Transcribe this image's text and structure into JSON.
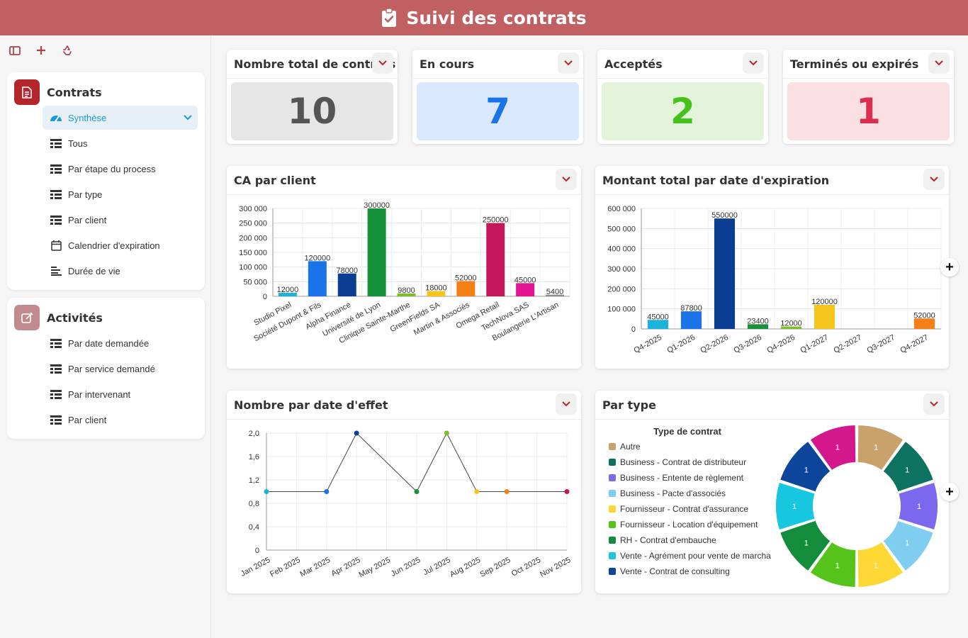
{
  "header": {
    "title": "Suivi des contrats"
  },
  "sidebar": {
    "contracts": {
      "title": "Contrats",
      "items": [
        {
          "label": "Synthèse",
          "icon": "gauge-icon",
          "active": true
        },
        {
          "label": "Tous",
          "icon": "table-icon"
        },
        {
          "label": "Par étape du process",
          "icon": "table-icon"
        },
        {
          "label": "Par type",
          "icon": "table-icon"
        },
        {
          "label": "Par client",
          "icon": "table-icon"
        },
        {
          "label": "Calendrier d'expiration",
          "icon": "calendar-icon"
        },
        {
          "label": "Durée de vie",
          "icon": "gantt-icon"
        }
      ]
    },
    "activities": {
      "title": "Activités",
      "items": [
        {
          "label": "Par date demandée",
          "icon": "table-icon"
        },
        {
          "label": "Par service demandé",
          "icon": "table-icon"
        },
        {
          "label": "Par intervenant",
          "icon": "table-icon"
        },
        {
          "label": "Par client",
          "icon": "table-icon"
        }
      ]
    }
  },
  "kpis": [
    {
      "title": "Nombre total de contrats",
      "value": "10",
      "bg": "#e6e6e6",
      "color": "#555555"
    },
    {
      "title": "En cours",
      "value": "7",
      "bg": "#d9e8fb",
      "color": "#1a73e8"
    },
    {
      "title": "Acceptés",
      "value": "2",
      "bg": "#e2f3d9",
      "color": "#45c21a"
    },
    {
      "title": "Terminés ou expirés",
      "value": "1",
      "bg": "#fadfe3",
      "color": "#dc2f4e"
    }
  ],
  "charts": {
    "ca_client": {
      "title": "CA par client"
    },
    "montant_expiration": {
      "title": "Montant total par date d'expiration"
    },
    "nombre_effet": {
      "title": "Nombre par date d'effet"
    },
    "par_type": {
      "title": "Par type",
      "legend_title": "Type de contrat"
    }
  },
  "chart_data": [
    {
      "type": "bar",
      "title": "CA par client",
      "categories": [
        "Studio Pixel",
        "Société Dupont & Fils",
        "Alpha Finance",
        "Université de Lyon",
        "Clinique Sainte-Marthe",
        "GreenFields SA",
        "Martin & Associés",
        "Omega Retail",
        "TechNova SAS",
        "Boulangerie L'Artisan"
      ],
      "values": [
        12000,
        120000,
        78000,
        300000,
        9800,
        18000,
        52000,
        250000,
        45000,
        5400
      ],
      "colors": [
        "#1ab3d9",
        "#1a73e8",
        "#0b3d91",
        "#16923a",
        "#7cbf26",
        "#f5c51c",
        "#f57f17",
        "#c2185b",
        "#e0158f",
        "#8e8e8e"
      ],
      "yticks": [
        "300 000",
        "250 000",
        "200 000",
        "150 000",
        "100 000",
        "50 000",
        "0"
      ],
      "ylim": [
        0,
        300000
      ]
    },
    {
      "type": "bar",
      "title": "Montant total par date d'expiration",
      "categories": [
        "Q4-2025",
        "Q1-2026",
        "Q2-2026",
        "Q3-2026",
        "Q4-2026",
        "Q1-2027",
        "Q2-2027",
        "Q3-2027",
        "Q4-2027"
      ],
      "values": [
        45000,
        87800,
        550000,
        23400,
        12000,
        120000,
        null,
        null,
        52000
      ],
      "colors": [
        "#1ab3d9",
        "#1a73e8",
        "#0b3d91",
        "#16923a",
        "#7cbf26",
        "#f5c51c",
        null,
        null,
        "#f57f17"
      ],
      "yticks": [
        "600 000",
        "500 000",
        "400 000",
        "300 000",
        "200 000",
        "100 000",
        "0"
      ],
      "ylim": [
        0,
        600000
      ]
    },
    {
      "type": "line",
      "title": "Nombre par date d'effet",
      "categories": [
        "Jan 2025",
        "Feb 2025",
        "Mar 2025",
        "Apr 2025",
        "May 2025",
        "Jun 2025",
        "Jul 2025",
        "Aug 2025",
        "Sep 2025",
        "Oct 2025",
        "Nov 2025"
      ],
      "points": [
        {
          "x": "Jan 2025",
          "y": 1,
          "color": "#1ab3d9"
        },
        {
          "x": "Mar 2025",
          "y": 1,
          "color": "#1a73e8"
        },
        {
          "x": "Apr 2025",
          "y": 2,
          "color": "#0b3d91"
        },
        {
          "x": "Jun 2025",
          "y": 1,
          "color": "#16923a"
        },
        {
          "x": "Jul 2025",
          "y": 2,
          "color": "#7cbf26"
        },
        {
          "x": "Aug 2025",
          "y": 1,
          "color": "#f5c51c"
        },
        {
          "x": "Sep 2025",
          "y": 1,
          "color": "#f57f17"
        },
        {
          "x": "Nov 2025",
          "y": 1,
          "color": "#c2185b"
        }
      ],
      "yticks": [
        "2,0",
        "1,6",
        "1,2",
        "0,8",
        "0,4",
        "0"
      ],
      "ylim": [
        0,
        2
      ]
    },
    {
      "type": "pie",
      "title": "Par type",
      "legend_title": "Type de contrat",
      "slices": [
        {
          "label": "Autre",
          "value": 1,
          "color": "#c8a16b"
        },
        {
          "label": "Business - Contrat de distributeur",
          "value": 1,
          "color": "#0d7360"
        },
        {
          "label": "Business - Entente de règlement",
          "value": 1,
          "color": "#7b68ee"
        },
        {
          "label": "Business - Pacte d'associés",
          "value": 1,
          "color": "#7fcdf0"
        },
        {
          "label": "Fournisseur - Contrat d'assurance",
          "value": 1,
          "color": "#fdd835"
        },
        {
          "label": "Fournisseur - Location d'équipement",
          "value": 1,
          "color": "#55c31a"
        },
        {
          "label": "RH - Contrat d'embauche",
          "value": 1,
          "color": "#138c3c"
        },
        {
          "label": "Vente - Agrément pour vente de marcha",
          "value": 1,
          "color": "#17c7e0"
        },
        {
          "label": "Vente - Contrat de consulting",
          "value": 1,
          "color": "#0c4599"
        },
        {
          "label": "",
          "value": 1,
          "color": "#d4188b"
        }
      ]
    }
  ]
}
